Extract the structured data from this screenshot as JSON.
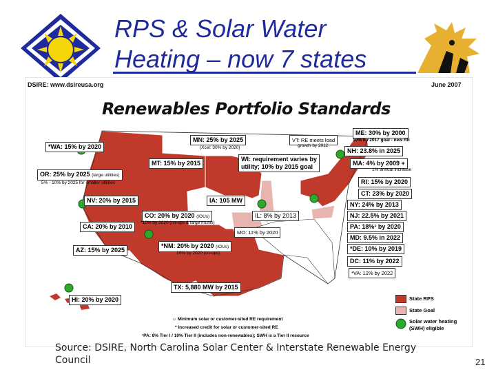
{
  "title": {
    "line1": "RPS & Solar Water",
    "line2": "Heating – now 7 states"
  },
  "map": {
    "dsire": "DSIRE: www.dsireusa.org",
    "date": "June 2007",
    "heading": "Renewables Portfolio Standards",
    "states": {
      "wa": "*WA: 15% by 2020",
      "or": "OR: 25% by 2025",
      "or_note": "(large utilities)",
      "or_sub": "5% - 10% by 2025 for smaller utilities",
      "mt": "MT: 15% by 2015",
      "mn": "MN: 25% by 2025",
      "mn_sub": "(Xcel: 30% by 2020)",
      "vt": "VT: RE meets load",
      "vt_sub": "growth by 2012",
      "me": "ME: 30% by 2000",
      "me_sub": "10% by 2017 goal - new RE",
      "nh": "NH: 23.8% in 2025",
      "ma": "MA: 4% by 2009 +",
      "ma_sub": "1% annual increase",
      "wi": "WI: requirement varies by",
      "wi_2": "utility; 10% by 2015 goal",
      "nv": "NV: 20% by 2015",
      "ia": "IA: 105 MW",
      "ri": "RI: 15% by 2020",
      "ct": "CT: 23% by 2020",
      "co": "CO: 20% by 2020",
      "co_note": "(IOUs)",
      "co_sub": "*10% by 2020 (co-ops & large munis)",
      "il": "IL: 8% by 2013",
      "ny": "NY: 24% by 2013",
      "nj": "NJ: 22.5% by 2021",
      "ca": "CA: 20% by 2010",
      "mo": "MO: 11% by 2020",
      "pa": "PA: 18%¹ by 2020",
      "md": "MD: 9.5% in 2022",
      "az": "AZ: 15% by 2025",
      "nm": "*NM: 20% by 2020",
      "nm_note": "(IOUs)",
      "nm_sub": "10% by 2020 (co-ops)",
      "de": "*DE: 10% by 2019",
      "dc": "DC: 11% by 2022",
      "va": "*VA: 12% by 2022",
      "tx": "TX: 5,880 MW by 2015",
      "hi": "HI: 20% by 2020"
    },
    "legend": {
      "rps": "State RPS",
      "goal": "State Goal",
      "swh_1": "Solar water heating",
      "swh_2": "(SWH) eligible"
    },
    "footnotes": {
      "f1": "☼ Minimum solar or customer-sited RE requirement",
      "f2": "* Increased credit for solar or customer-sited RE",
      "f3": "¹PA: 8% Tier I / 10% Tier II (includes non-renewables); SWH is a Tier II resource"
    },
    "colors": {
      "rps": "#c0392b",
      "goal": "#e8b4b0",
      "swh": "#2fa82f",
      "other": "#ffffff"
    }
  },
  "source": "Source: DSIRE, North Carolina Solar Center & Interstate Renewable Energy Council",
  "page_number": "21"
}
